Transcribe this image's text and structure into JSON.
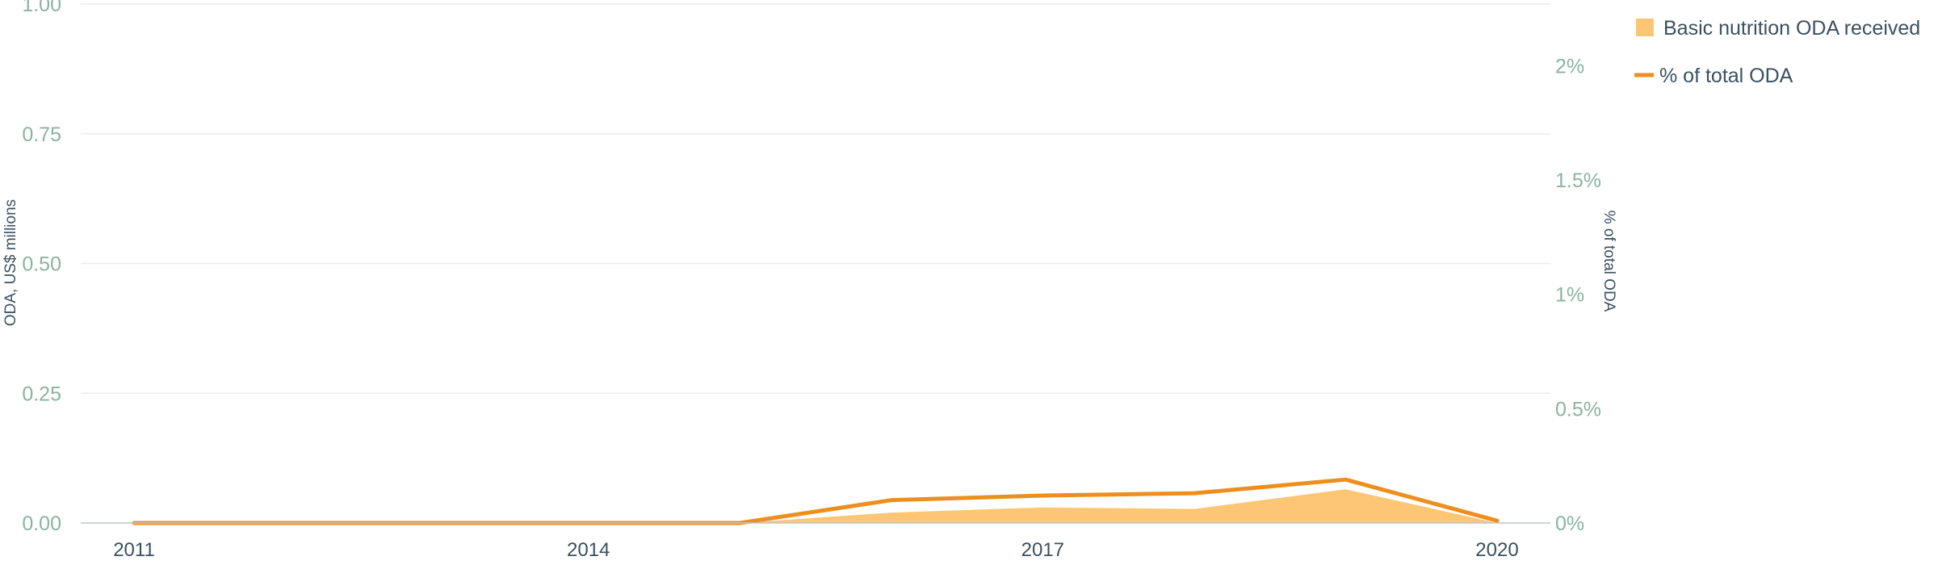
{
  "chart_data": {
    "type": "area",
    "x": [
      2011,
      2012,
      2013,
      2014,
      2015,
      2016,
      2017,
      2018,
      2019,
      2020
    ],
    "series": [
      {
        "name": "Basic nutrition ODA received",
        "kind": "area",
        "axis": "left",
        "color": "#fcc675",
        "values": [
          0,
          0,
          0,
          0,
          0,
          0.02,
          0.03,
          0.027,
          0.065,
          0.0
        ]
      },
      {
        "name": "% of total ODA",
        "kind": "line",
        "axis": "right",
        "color": "#ee8e1d",
        "values": [
          0,
          0,
          0,
          0,
          0,
          0.1,
          0.12,
          0.13,
          0.19,
          0.01
        ]
      }
    ],
    "xlabel": "",
    "ylabel": "ODA, US$ millions",
    "y2label": "% of total ODA",
    "ylim": [
      0,
      1.0
    ],
    "y2lim": [
      0,
      2.27
    ],
    "xticks": [
      "2011",
      "2014",
      "2017",
      "2020"
    ],
    "yticks": [
      "0.00",
      "0.25",
      "0.50",
      "0.75",
      "1.00"
    ],
    "y2ticks": [
      "0%",
      "0.5%",
      "1%",
      "1.5%",
      "2%"
    ],
    "grid": true,
    "legend_position": "top-right"
  }
}
